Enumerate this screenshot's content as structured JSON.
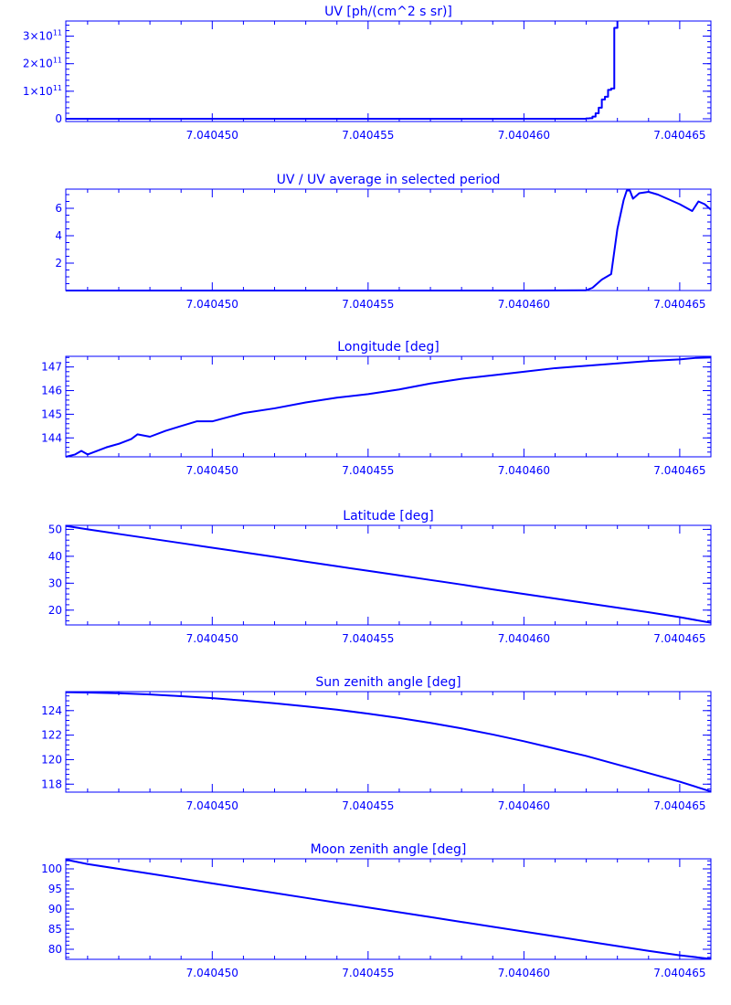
{
  "accent_color": "#0000ff",
  "background_color": "#ffffff",
  "chart_data": [
    {
      "type": "line",
      "title": "UV [ph/(cm^2 s sr)]",
      "xlabel": "",
      "ylabel": "",
      "xlim": [
        7.0404453,
        7.040466
      ],
      "ylim": [
        -10000000000.0,
        355000000000.0
      ],
      "x_ticks": [
        {
          "value": 7.04045,
          "label": "7.040450"
        },
        {
          "value": 7.040455,
          "label": "7.040455"
        },
        {
          "value": 7.04046,
          "label": "7.040460"
        },
        {
          "value": 7.040465,
          "label": "7.040465"
        }
      ],
      "y_ticks": [
        {
          "value": 0,
          "label": "0"
        },
        {
          "value": 100000000000.0,
          "label": "1×10",
          "exp": "11"
        },
        {
          "value": 200000000000.0,
          "label": "2×10",
          "exp": "11"
        },
        {
          "value": 300000000000.0,
          "label": "3×10",
          "exp": "11"
        }
      ],
      "y_minor": 20000000000.0,
      "line_shape": "step",
      "series": [
        {
          "x": [
            7.0404453,
            7.040461,
            7.040462,
            7.0404621,
            7.0404622,
            7.0404623,
            7.0404624,
            7.0404625,
            7.0404626,
            7.0404627,
            7.0404628,
            7.0404629,
            7.040463
          ],
          "values": [
            0,
            0,
            1000000000.0,
            2000000000.0,
            8000000000.0,
            20000000000.0,
            40000000000.0,
            70000000000.0,
            80000000000.0,
            105000000000.0,
            110000000000.0,
            330000000000.0,
            360000000000.0
          ]
        }
      ]
    },
    {
      "type": "line",
      "title": "UV / UV average in selected period",
      "xlabel": "",
      "ylabel": "",
      "xlim": [
        7.0404453,
        7.040466
      ],
      "ylim": [
        0,
        7.4
      ],
      "x_ticks": [
        {
          "value": 7.04045,
          "label": "7.040450"
        },
        {
          "value": 7.040455,
          "label": "7.040455"
        },
        {
          "value": 7.04046,
          "label": "7.040460"
        },
        {
          "value": 7.040465,
          "label": "7.040465"
        }
      ],
      "y_ticks": [
        {
          "value": 2,
          "label": "2"
        },
        {
          "value": 4,
          "label": "4"
        },
        {
          "value": 6,
          "label": "6"
        }
      ],
      "y_minor": 0.5,
      "line_shape": "linear",
      "series": [
        {
          "x": [
            7.0404453,
            7.04046,
            7.040462,
            7.0404622,
            7.0404625,
            7.0404628,
            7.040463,
            7.0404632,
            7.0404633,
            7.0404634,
            7.0404635,
            7.0404637,
            7.040464,
            7.0404643,
            7.0404646,
            7.040465,
            7.0404654,
            7.0404656,
            7.0404658,
            7.040466
          ],
          "values": [
            0,
            0,
            0.02,
            0.2,
            0.8,
            1.2,
            4.5,
            6.6,
            7.3,
            7.3,
            6.7,
            7.1,
            7.2,
            7.0,
            6.7,
            6.3,
            5.8,
            6.5,
            6.3,
            5.9
          ]
        }
      ]
    },
    {
      "type": "line",
      "title": "Longitude [deg]",
      "xlabel": "",
      "ylabel": "",
      "xlim": [
        7.0404453,
        7.040466
      ],
      "ylim": [
        143.2,
        147.45
      ],
      "x_ticks": [
        {
          "value": 7.04045,
          "label": "7.040450"
        },
        {
          "value": 7.040455,
          "label": "7.040455"
        },
        {
          "value": 7.04046,
          "label": "7.040460"
        },
        {
          "value": 7.040465,
          "label": "7.040465"
        }
      ],
      "y_ticks": [
        {
          "value": 144,
          "label": "144"
        },
        {
          "value": 145,
          "label": "145"
        },
        {
          "value": 146,
          "label": "146"
        },
        {
          "value": 147,
          "label": "147"
        }
      ],
      "y_minor": 0.2,
      "line_shape": "linear",
      "series": [
        {
          "x": [
            7.0404453,
            7.0404456,
            7.0404458,
            7.040446,
            7.0404463,
            7.0404466,
            7.040447,
            7.0404474,
            7.0404476,
            7.040448,
            7.0404485,
            7.040449,
            7.0404495,
            7.04045,
            7.040451,
            7.040452,
            7.040453,
            7.040454,
            7.040455,
            7.040456,
            7.040457,
            7.040458,
            7.040459,
            7.04046,
            7.040461,
            7.040462,
            7.040463,
            7.040464,
            7.040465,
            7.0404655,
            7.040466
          ],
          "values": [
            143.2,
            143.3,
            143.45,
            143.3,
            143.45,
            143.6,
            143.75,
            143.95,
            144.15,
            144.05,
            144.3,
            144.5,
            144.7,
            144.7,
            145.05,
            145.25,
            145.5,
            145.7,
            145.85,
            146.05,
            146.3,
            146.5,
            146.65,
            146.8,
            146.95,
            147.05,
            147.15,
            147.25,
            147.32,
            147.38,
            147.4
          ]
        }
      ]
    },
    {
      "type": "line",
      "title": "Latitude [deg]",
      "xlabel": "",
      "ylabel": "",
      "xlim": [
        7.0404453,
        7.040466
      ],
      "ylim": [
        14.5,
        51.5
      ],
      "x_ticks": [
        {
          "value": 7.04045,
          "label": "7.040450"
        },
        {
          "value": 7.040455,
          "label": "7.040455"
        },
        {
          "value": 7.04046,
          "label": "7.040460"
        },
        {
          "value": 7.040465,
          "label": "7.040465"
        }
      ],
      "y_ticks": [
        {
          "value": 20,
          "label": "20"
        },
        {
          "value": 30,
          "label": "30"
        },
        {
          "value": 40,
          "label": "40"
        },
        {
          "value": 50,
          "label": "50"
        }
      ],
      "y_minor": 2,
      "line_shape": "linear",
      "series": [
        {
          "x": [
            7.0404453,
            7.040446,
            7.040447,
            7.040448,
            7.040449,
            7.04045,
            7.040451,
            7.040452,
            7.040453,
            7.040454,
            7.040455,
            7.040456,
            7.040457,
            7.040458,
            7.040459,
            7.04046,
            7.040461,
            7.040462,
            7.040463,
            7.040464,
            7.040465,
            7.040466
          ],
          "values": [
            51.3,
            50.0,
            48.3,
            46.6,
            44.9,
            43.2,
            41.5,
            39.8,
            38.0,
            36.3,
            34.6,
            32.9,
            31.2,
            29.5,
            27.7,
            26.0,
            24.3,
            22.6,
            20.9,
            19.2,
            17.4,
            15.3
          ]
        }
      ]
    },
    {
      "type": "line",
      "title": "Sun zenith angle [deg]",
      "xlabel": "",
      "ylabel": "",
      "xlim": [
        7.0404453,
        7.040466
      ],
      "ylim": [
        117.35,
        125.55
      ],
      "x_ticks": [
        {
          "value": 7.04045,
          "label": "7.040450"
        },
        {
          "value": 7.040455,
          "label": "7.040455"
        },
        {
          "value": 7.04046,
          "label": "7.040460"
        },
        {
          "value": 7.040465,
          "label": "7.040465"
        }
      ],
      "y_ticks": [
        {
          "value": 118,
          "label": "118"
        },
        {
          "value": 120,
          "label": "120"
        },
        {
          "value": 122,
          "label": "122"
        },
        {
          "value": 124,
          "label": "124"
        }
      ],
      "y_minor": 0.4,
      "line_shape": "linear",
      "series": [
        {
          "x": [
            7.0404453,
            7.040446,
            7.040447,
            7.040448,
            7.040449,
            7.04045,
            7.040451,
            7.040452,
            7.040453,
            7.040454,
            7.040455,
            7.040456,
            7.040457,
            7.040458,
            7.040459,
            7.04046,
            7.040461,
            7.040462,
            7.040463,
            7.040464,
            7.040465,
            7.040466
          ],
          "values": [
            125.5,
            125.48,
            125.42,
            125.32,
            125.18,
            125.02,
            124.82,
            124.6,
            124.35,
            124.08,
            123.75,
            123.4,
            123.0,
            122.55,
            122.05,
            121.5,
            120.9,
            120.3,
            119.6,
            118.9,
            118.2,
            117.4
          ]
        }
      ]
    },
    {
      "type": "line",
      "title": "Moon zenith angle [deg]",
      "xlabel": "",
      "ylabel": "",
      "xlim": [
        7.0404453,
        7.040466
      ],
      "ylim": [
        77.5,
        102.5
      ],
      "x_ticks": [
        {
          "value": 7.04045,
          "label": "7.040450"
        },
        {
          "value": 7.040455,
          "label": "7.040455"
        },
        {
          "value": 7.04046,
          "label": "7.040460"
        },
        {
          "value": 7.040465,
          "label": "7.040465"
        }
      ],
      "y_ticks": [
        {
          "value": 80,
          "label": "80"
        },
        {
          "value": 85,
          "label": "85"
        },
        {
          "value": 90,
          "label": "90"
        },
        {
          "value": 95,
          "label": "95"
        },
        {
          "value": 100,
          "label": "100"
        }
      ],
      "y_minor": 1,
      "line_shape": "linear",
      "series": [
        {
          "x": [
            7.0404453,
            7.040446,
            7.040447,
            7.040448,
            7.040449,
            7.04045,
            7.040451,
            7.040452,
            7.040453,
            7.040454,
            7.040455,
            7.040456,
            7.040457,
            7.040458,
            7.040459,
            7.04046,
            7.040461,
            7.040462,
            7.040463,
            7.040464,
            7.040465,
            7.040466
          ],
          "values": [
            102.3,
            101.2,
            100.0,
            98.8,
            97.6,
            96.4,
            95.2,
            94.0,
            92.8,
            91.6,
            90.4,
            89.2,
            88.0,
            86.8,
            85.6,
            84.4,
            83.2,
            82.0,
            80.8,
            79.6,
            78.5,
            77.6
          ]
        }
      ]
    }
  ]
}
